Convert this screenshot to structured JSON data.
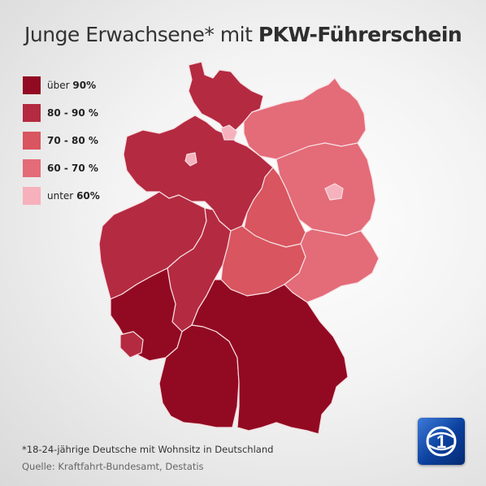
{
  "title": {
    "regular": "Junge Erwachsene* mit",
    "bold": "PKW-Führerschein"
  },
  "legend": [
    {
      "prefix": "über",
      "value": "90%",
      "color": "#920a22"
    },
    {
      "prefix": "",
      "value": "80 - 90 %",
      "color": "#b42a41"
    },
    {
      "prefix": "",
      "value": "70 - 80 %",
      "color": "#d9555f"
    },
    {
      "prefix": "",
      "value": "60 - 70 %",
      "color": "#e46b78"
    },
    {
      "prefix": "unter",
      "value": "60%",
      "color": "#f6b1bc"
    }
  ],
  "regions": [
    {
      "name": "Schleswig-Holstein",
      "category": "80 - 90 %"
    },
    {
      "name": "Hamburg",
      "category": "unter 60%"
    },
    {
      "name": "Bremen",
      "category": "unter 60%"
    },
    {
      "name": "Niedersachsen",
      "category": "80 - 90 %"
    },
    {
      "name": "Mecklenburg-Vorpommern",
      "category": "60 - 70 %"
    },
    {
      "name": "Berlin",
      "category": "unter 60%"
    },
    {
      "name": "Brandenburg",
      "category": "60 - 70 %"
    },
    {
      "name": "Sachsen-Anhalt",
      "category": "70 - 80 %"
    },
    {
      "name": "Nordrhein-Westfalen",
      "category": "80 - 90 %"
    },
    {
      "name": "Hessen",
      "category": "80 - 90 %"
    },
    {
      "name": "Thüringen",
      "category": "70 - 80 %"
    },
    {
      "name": "Sachsen",
      "category": "60 - 70 %"
    },
    {
      "name": "Rheinland-Pfalz",
      "category": "über 90%"
    },
    {
      "name": "Saarland",
      "category": "80 - 90 %"
    },
    {
      "name": "Baden-Württemberg",
      "category": "über 90%"
    },
    {
      "name": "Bayern",
      "category": "über 90%"
    }
  ],
  "footnote": "*18-24-jährige Deutsche mit Wohnsitz in Deutschland",
  "source": "Quelle: Kraftfahrt-Bundesamt, Destatis",
  "logo": {
    "icon": "ard-logo-icon",
    "label": "1"
  }
}
